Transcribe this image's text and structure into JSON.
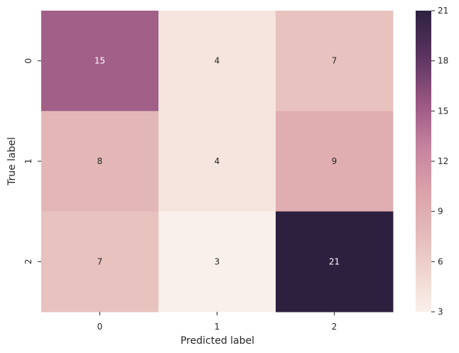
{
  "chart_data": {
    "type": "heatmap",
    "xlabel": "Predicted label",
    "ylabel": "True label",
    "x_categories": [
      "0",
      "1",
      "2"
    ],
    "y_categories": [
      "0",
      "1",
      "2"
    ],
    "values": [
      [
        15,
        4,
        7
      ],
      [
        8,
        4,
        9
      ],
      [
        7,
        3,
        21
      ]
    ],
    "colorbar": {
      "range": [
        3,
        21
      ],
      "ticks": [
        "3",
        "6",
        "9",
        "12",
        "15",
        "18",
        "21"
      ],
      "colormap": "cubehelix-light (pink to dark purple)"
    },
    "annotated": true,
    "grid": false
  }
}
